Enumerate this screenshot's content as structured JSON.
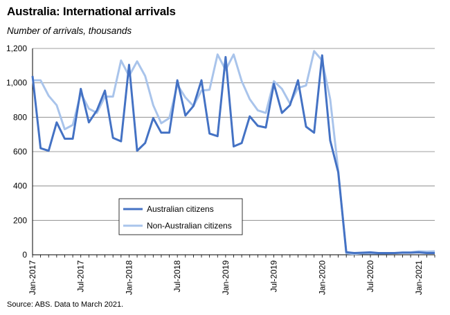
{
  "title": "Australia: International arrivals",
  "subtitle": "Number of arrivals, thousands",
  "source": "Source: ABS.  Data to March 2021.",
  "colors": {
    "aus": "#4472C4",
    "non_aus": "#A9C4EB",
    "grid": "#7f7f7f"
  },
  "chart_data": {
    "type": "line",
    "title": "Australia: International arrivals",
    "subtitle": "Number of arrivals, thousands",
    "xlabel": "",
    "ylabel": "",
    "ylim": [
      0,
      1200
    ],
    "yticks": [
      0,
      200,
      400,
      600,
      800,
      1000,
      1200
    ],
    "ytick_labels": [
      "0",
      "200",
      "400",
      "600",
      "800",
      "1,000",
      "1,200"
    ],
    "grid": true,
    "legend_position": "center-left",
    "x": [
      "Jan-2017",
      "Feb-2017",
      "Mar-2017",
      "Apr-2017",
      "May-2017",
      "Jun-2017",
      "Jul-2017",
      "Aug-2017",
      "Sep-2017",
      "Oct-2017",
      "Nov-2017",
      "Dec-2017",
      "Jan-2018",
      "Feb-2018",
      "Mar-2018",
      "Apr-2018",
      "May-2018",
      "Jun-2018",
      "Jul-2018",
      "Aug-2018",
      "Sep-2018",
      "Oct-2018",
      "Nov-2018",
      "Dec-2018",
      "Jan-2019",
      "Feb-2019",
      "Mar-2019",
      "Apr-2019",
      "May-2019",
      "Jun-2019",
      "Jul-2019",
      "Aug-2019",
      "Sep-2019",
      "Oct-2019",
      "Nov-2019",
      "Dec-2019",
      "Jan-2020",
      "Feb-2020",
      "Mar-2020",
      "Apr-2020",
      "May-2020",
      "Jun-2020",
      "Jul-2020",
      "Aug-2020",
      "Sep-2020",
      "Oct-2020",
      "Nov-2020",
      "Dec-2020",
      "Jan-2021",
      "Feb-2021",
      "Mar-2021"
    ],
    "xtick_labels": [
      "Jan-2017",
      "Jul-2017",
      "Jan-2018",
      "Jul-2018",
      "Jan-2019",
      "Jul-2019",
      "Jan-2020",
      "Jul-2020",
      "Jan-2021"
    ],
    "series": [
      {
        "name": "Australian citizens",
        "values": [
          1040,
          620,
          605,
          770,
          675,
          675,
          965,
          770,
          840,
          955,
          680,
          660,
          1105,
          605,
          650,
          795,
          710,
          710,
          1015,
          810,
          865,
          1015,
          705,
          690,
          1150,
          630,
          650,
          805,
          750,
          740,
          995,
          825,
          870,
          1015,
          745,
          710,
          1160,
          665,
          480,
          15,
          10,
          12,
          14,
          10,
          10,
          10,
          12,
          12,
          14,
          10,
          10
        ]
      },
      {
        "name": "Non-Australian citizens",
        "values": [
          1015,
          1015,
          925,
          870,
          730,
          755,
          940,
          850,
          825,
          920,
          920,
          1130,
          1040,
          1125,
          1040,
          870,
          765,
          795,
          990,
          915,
          865,
          955,
          960,
          1165,
          1075,
          1165,
          1010,
          905,
          840,
          825,
          1010,
          965,
          880,
          970,
          985,
          1185,
          1130,
          905,
          490,
          8,
          5,
          8,
          8,
          8,
          8,
          10,
          14,
          14,
          20,
          18,
          20
        ]
      }
    ]
  }
}
